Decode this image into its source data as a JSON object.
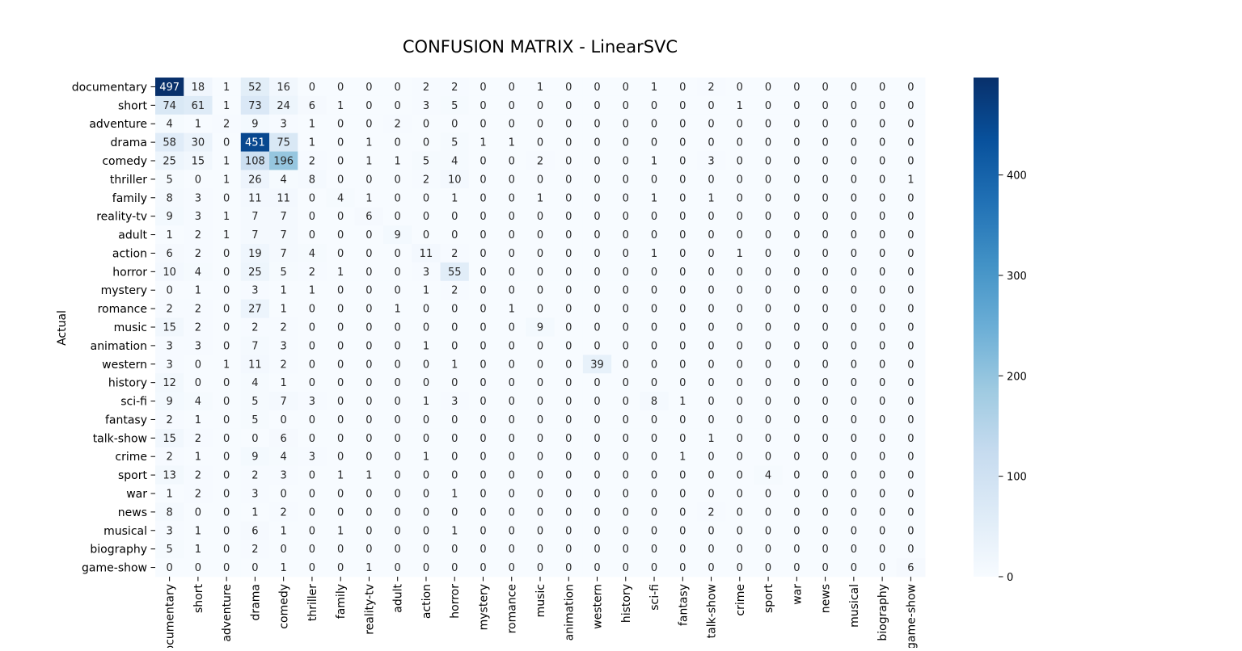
{
  "chart_data": {
    "type": "heatmap",
    "title": "CONFUSION MATRIX - LinearSVC",
    "ylabel": "Actual",
    "xlabel": "",
    "colormap": "Blues",
    "colors": {
      "low": "#f7fbff",
      "high": "#08306b"
    },
    "colorbar": {
      "min": 0,
      "max": 497,
      "ticks": [
        0,
        100,
        200,
        300,
        400
      ]
    },
    "row_labels": [
      "documentary",
      "short",
      "adventure",
      "drama",
      "comedy",
      "thriller",
      "family",
      "reality-tv",
      "adult",
      "action",
      "horror",
      "mystery",
      "romance",
      "music",
      "animation",
      "western",
      "history",
      "sci-fi",
      "fantasy",
      "talk-show",
      "crime",
      "sport",
      "war",
      "news",
      "musical",
      "biography",
      "game-show"
    ],
    "col_labels": [
      "documentary",
      "short",
      "adventure",
      "drama",
      "comedy",
      "thriller",
      "family",
      "reality-tv",
      "adult",
      "action",
      "horror",
      "mystery",
      "romance",
      "music",
      "animation",
      "western",
      "history",
      "sci-fi",
      "fantasy",
      "talk-show",
      "crime",
      "sport",
      "war",
      "news",
      "musical",
      "biography",
      "game-show"
    ],
    "values": [
      [
        497,
        18,
        1,
        52,
        16,
        0,
        0,
        0,
        0,
        2,
        2,
        0,
        0,
        1,
        0,
        0,
        0,
        1,
        0,
        2,
        0,
        0,
        0,
        0,
        0,
        0,
        0
      ],
      [
        74,
        61,
        1,
        73,
        24,
        6,
        1,
        0,
        0,
        3,
        5,
        0,
        0,
        0,
        0,
        0,
        0,
        0,
        0,
        0,
        1,
        0,
        0,
        0,
        0,
        0,
        0
      ],
      [
        4,
        1,
        2,
        9,
        3,
        1,
        0,
        0,
        2,
        0,
        0,
        0,
        0,
        0,
        0,
        0,
        0,
        0,
        0,
        0,
        0,
        0,
        0,
        0,
        0,
        0,
        0
      ],
      [
        58,
        30,
        0,
        451,
        75,
        1,
        0,
        1,
        0,
        0,
        5,
        1,
        1,
        0,
        0,
        0,
        0,
        0,
        0,
        0,
        0,
        0,
        0,
        0,
        0,
        0,
        0
      ],
      [
        25,
        15,
        1,
        108,
        196,
        2,
        0,
        1,
        1,
        5,
        4,
        0,
        0,
        2,
        0,
        0,
        0,
        1,
        0,
        3,
        0,
        0,
        0,
        0,
        0,
        0,
        0
      ],
      [
        5,
        0,
        1,
        26,
        4,
        8,
        0,
        0,
        0,
        2,
        10,
        0,
        0,
        0,
        0,
        0,
        0,
        0,
        0,
        0,
        0,
        0,
        0,
        0,
        0,
        0,
        1
      ],
      [
        8,
        3,
        0,
        11,
        11,
        0,
        4,
        1,
        0,
        0,
        1,
        0,
        0,
        1,
        0,
        0,
        0,
        1,
        0,
        1,
        0,
        0,
        0,
        0,
        0,
        0,
        0
      ],
      [
        9,
        3,
        1,
        7,
        7,
        0,
        0,
        6,
        0,
        0,
        0,
        0,
        0,
        0,
        0,
        0,
        0,
        0,
        0,
        0,
        0,
        0,
        0,
        0,
        0,
        0,
        0
      ],
      [
        1,
        2,
        1,
        7,
        7,
        0,
        0,
        0,
        9,
        0,
        0,
        0,
        0,
        0,
        0,
        0,
        0,
        0,
        0,
        0,
        0,
        0,
        0,
        0,
        0,
        0,
        0
      ],
      [
        6,
        2,
        0,
        19,
        7,
        4,
        0,
        0,
        0,
        11,
        2,
        0,
        0,
        0,
        0,
        0,
        0,
        1,
        0,
        0,
        1,
        0,
        0,
        0,
        0,
        0,
        0
      ],
      [
        10,
        4,
        0,
        25,
        5,
        2,
        1,
        0,
        0,
        3,
        55,
        0,
        0,
        0,
        0,
        0,
        0,
        0,
        0,
        0,
        0,
        0,
        0,
        0,
        0,
        0,
        0
      ],
      [
        0,
        1,
        0,
        3,
        1,
        1,
        0,
        0,
        0,
        1,
        2,
        0,
        0,
        0,
        0,
        0,
        0,
        0,
        0,
        0,
        0,
        0,
        0,
        0,
        0,
        0,
        0
      ],
      [
        2,
        2,
        0,
        27,
        1,
        0,
        0,
        0,
        1,
        0,
        0,
        0,
        1,
        0,
        0,
        0,
        0,
        0,
        0,
        0,
        0,
        0,
        0,
        0,
        0,
        0,
        0
      ],
      [
        15,
        2,
        0,
        2,
        2,
        0,
        0,
        0,
        0,
        0,
        0,
        0,
        0,
        9,
        0,
        0,
        0,
        0,
        0,
        0,
        0,
        0,
        0,
        0,
        0,
        0,
        0
      ],
      [
        3,
        3,
        0,
        7,
        3,
        0,
        0,
        0,
        0,
        1,
        0,
        0,
        0,
        0,
        0,
        0,
        0,
        0,
        0,
        0,
        0,
        0,
        0,
        0,
        0,
        0,
        0
      ],
      [
        3,
        0,
        1,
        11,
        2,
        0,
        0,
        0,
        0,
        0,
        1,
        0,
        0,
        0,
        0,
        39,
        0,
        0,
        0,
        0,
        0,
        0,
        0,
        0,
        0,
        0,
        0
      ],
      [
        12,
        0,
        0,
        4,
        1,
        0,
        0,
        0,
        0,
        0,
        0,
        0,
        0,
        0,
        0,
        0,
        0,
        0,
        0,
        0,
        0,
        0,
        0,
        0,
        0,
        0,
        0
      ],
      [
        9,
        4,
        0,
        5,
        7,
        3,
        0,
        0,
        0,
        1,
        3,
        0,
        0,
        0,
        0,
        0,
        0,
        8,
        1,
        0,
        0,
        0,
        0,
        0,
        0,
        0,
        0
      ],
      [
        2,
        1,
        0,
        5,
        0,
        0,
        0,
        0,
        0,
        0,
        0,
        0,
        0,
        0,
        0,
        0,
        0,
        0,
        0,
        0,
        0,
        0,
        0,
        0,
        0,
        0,
        0
      ],
      [
        15,
        2,
        0,
        0,
        6,
        0,
        0,
        0,
        0,
        0,
        0,
        0,
        0,
        0,
        0,
        0,
        0,
        0,
        0,
        1,
        0,
        0,
        0,
        0,
        0,
        0,
        0
      ],
      [
        2,
        1,
        0,
        9,
        4,
        3,
        0,
        0,
        0,
        1,
        0,
        0,
        0,
        0,
        0,
        0,
        0,
        0,
        1,
        0,
        0,
        0,
        0,
        0,
        0,
        0,
        0
      ],
      [
        13,
        2,
        0,
        2,
        3,
        0,
        1,
        1,
        0,
        0,
        0,
        0,
        0,
        0,
        0,
        0,
        0,
        0,
        0,
        0,
        0,
        4,
        0,
        0,
        0,
        0,
        0
      ],
      [
        1,
        2,
        0,
        3,
        0,
        0,
        0,
        0,
        0,
        0,
        1,
        0,
        0,
        0,
        0,
        0,
        0,
        0,
        0,
        0,
        0,
        0,
        0,
        0,
        0,
        0,
        0
      ],
      [
        8,
        0,
        0,
        1,
        2,
        0,
        0,
        0,
        0,
        0,
        0,
        0,
        0,
        0,
        0,
        0,
        0,
        0,
        0,
        2,
        0,
        0,
        0,
        0,
        0,
        0,
        0
      ],
      [
        3,
        1,
        0,
        6,
        1,
        0,
        1,
        0,
        0,
        0,
        1,
        0,
        0,
        0,
        0,
        0,
        0,
        0,
        0,
        0,
        0,
        0,
        0,
        0,
        0,
        0,
        0
      ],
      [
        5,
        1,
        0,
        2,
        0,
        0,
        0,
        0,
        0,
        0,
        0,
        0,
        0,
        0,
        0,
        0,
        0,
        0,
        0,
        0,
        0,
        0,
        0,
        0,
        0,
        0,
        0
      ],
      [
        0,
        0,
        0,
        0,
        1,
        0,
        0,
        1,
        0,
        0,
        0,
        0,
        0,
        0,
        0,
        0,
        0,
        0,
        0,
        0,
        0,
        0,
        0,
        0,
        0,
        0,
        6
      ]
    ]
  }
}
